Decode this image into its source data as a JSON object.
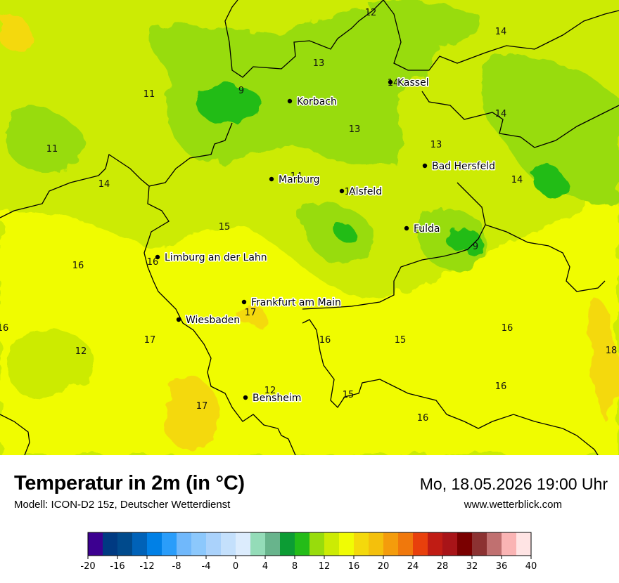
{
  "title": "Temperatur in 2m (in °C)",
  "subtitle": "Modell: ICON-D2 15z, Deutscher Wetterdienst",
  "datetime": "Mo, 18.05.2026 19:00 Uhr",
  "website": "www.wetterblick.com",
  "map": {
    "cities": [
      {
        "name": "Kassel"
      },
      {
        "name": "Korbach"
      },
      {
        "name": "Bad Hersfeld"
      },
      {
        "name": "Marburg"
      },
      {
        "name": "Alsfeld"
      },
      {
        "name": "Fulda"
      },
      {
        "name": "Limburg an der Lahn"
      },
      {
        "name": "Frankfurt am Main"
      },
      {
        "name": "Wiesbaden"
      },
      {
        "name": "Bensheim"
      }
    ],
    "values": [
      "12",
      "14",
      "13",
      "14",
      "11",
      "9",
      "13",
      "14",
      "11",
      "13",
      "14",
      "14",
      "14",
      "13",
      "15",
      "14",
      "16",
      "16",
      "9",
      "17",
      "16",
      "15",
      "16",
      "17",
      "12",
      "16",
      "18",
      "12",
      "17",
      "15",
      "16",
      "16"
    ]
  },
  "legend": {
    "colors": [
      "#3c0090",
      "#003a82",
      "#004a8c",
      "#0062b8",
      "#0080e6",
      "#2a9dfa",
      "#70b8fb",
      "#8cc8fc",
      "#aad2fb",
      "#c4e0fc",
      "#dcecfd",
      "#94dcb8",
      "#68b48c",
      "#0c9c34",
      "#24bc18",
      "#98dc0c",
      "#cceb04",
      "#f0fc04",
      "#f4d90c",
      "#f4c00c",
      "#f49c0c",
      "#f0780c",
      "#e8400c",
      "#c01c14",
      "#a81418",
      "#7a0000",
      "#8c3232",
      "#c07070",
      "#fab4b4",
      "#ffe4e4"
    ],
    "ticks": [
      "-20",
      "-16",
      "-12",
      "-8",
      "-4",
      "0",
      "4",
      "8",
      "12",
      "16",
      "20",
      "24",
      "28",
      "32",
      "36",
      "40"
    ]
  }
}
